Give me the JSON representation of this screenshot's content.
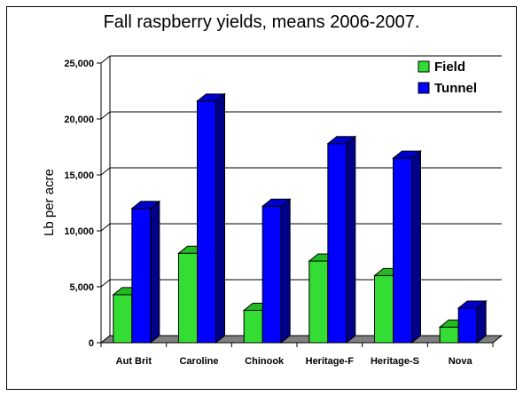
{
  "chart_data": {
    "type": "bar",
    "title": "Fall raspberry yields, means 2006-2007.",
    "ylabel": "Lb per acre",
    "xlabel": "",
    "categories": [
      "Aut Brit",
      "Caroline",
      "Chinook",
      "Heritage-F",
      "Heritage-S",
      "Nova"
    ],
    "series": [
      {
        "name": "Field",
        "values": [
          4300,
          8000,
          2900,
          7300,
          6000,
          1400
        ],
        "color": "#33dd33",
        "top_color": "#22bb22",
        "side_color": "#119911"
      },
      {
        "name": "Tunnel",
        "values": [
          12000,
          21600,
          12200,
          17800,
          16500,
          3100
        ],
        "color": "#0000ff",
        "top_color": "#0000cc",
        "side_color": "#000088"
      }
    ],
    "ylim": [
      0,
      25000
    ],
    "yticks": [
      "0",
      "5,000",
      "10,000",
      "15,000",
      "20,000",
      "25,000"
    ],
    "ytick_values": [
      0,
      5000,
      10000,
      15000,
      20000,
      25000
    ],
    "grid": true,
    "legend_position": "top-right",
    "floor_color": "#808080"
  }
}
